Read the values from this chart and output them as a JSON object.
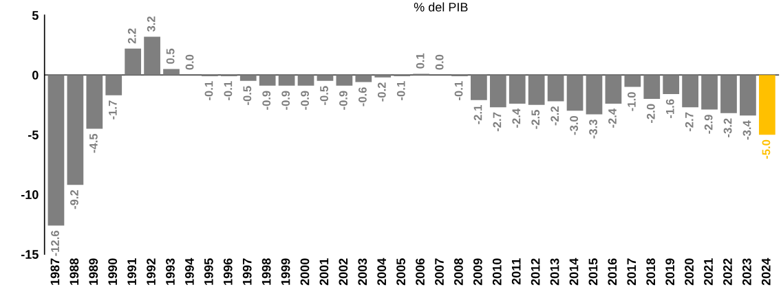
{
  "chart_data": {
    "type": "bar",
    "title": "% del PIB",
    "categories": [
      "1987",
      "1988",
      "1989",
      "1990",
      "1991",
      "1992",
      "1993",
      "1994",
      "1995",
      "1996",
      "1997",
      "1998",
      "1999",
      "2000",
      "2001",
      "2002",
      "2003",
      "2004",
      "2005",
      "2006",
      "2007",
      "2008",
      "2009",
      "2010",
      "2011",
      "2012",
      "2013",
      "2014",
      "2015",
      "2016",
      "2017",
      "2018",
      "2019",
      "2020",
      "2021",
      "2022",
      "2023",
      "2024"
    ],
    "values": [
      -12.6,
      -9.2,
      -4.5,
      -1.7,
      2.2,
      3.2,
      0.5,
      0.0,
      -0.1,
      -0.1,
      -0.5,
      -0.9,
      -0.9,
      -0.9,
      -0.5,
      -0.9,
      -0.6,
      -0.2,
      -0.1,
      0.1,
      0.0,
      -0.1,
      -2.1,
      -2.7,
      -2.4,
      -2.5,
      -2.2,
      -3.0,
      -3.3,
      -2.4,
      -1.0,
      -2.0,
      -1.6,
      -2.7,
      -2.9,
      -3.2,
      -3.4,
      -5.0
    ],
    "colors": [
      "#7f7f7f",
      "#7f7f7f",
      "#7f7f7f",
      "#7f7f7f",
      "#7f7f7f",
      "#7f7f7f",
      "#7f7f7f",
      "#7f7f7f",
      "#7f7f7f",
      "#7f7f7f",
      "#7f7f7f",
      "#7f7f7f",
      "#7f7f7f",
      "#7f7f7f",
      "#7f7f7f",
      "#7f7f7f",
      "#7f7f7f",
      "#7f7f7f",
      "#7f7f7f",
      "#7f7f7f",
      "#7f7f7f",
      "#7f7f7f",
      "#7f7f7f",
      "#7f7f7f",
      "#7f7f7f",
      "#7f7f7f",
      "#7f7f7f",
      "#7f7f7f",
      "#7f7f7f",
      "#7f7f7f",
      "#7f7f7f",
      "#7f7f7f",
      "#7f7f7f",
      "#7f7f7f",
      "#7f7f7f",
      "#7f7f7f",
      "#7f7f7f",
      "#ffc000"
    ],
    "value_labels": [
      "-12.6",
      "-9.2",
      "-4.5",
      "-1.7",
      "2.2",
      "3.2",
      "0.5",
      "0.0",
      "-0.1",
      "-0.1",
      "-0.5",
      "-0.9",
      "-0.9",
      "-0.9",
      "-0.5",
      "-0.9",
      "-0.6",
      "-0.2",
      "-0.1",
      "0.1",
      "0.0",
      "-0.1",
      "-2.1",
      "-2.7",
      "-2.4",
      "-2.5",
      "-2.2",
      "-3.0",
      "-3.3",
      "-2.4",
      "-1.0",
      "-2.0",
      "-1.6",
      "-2.7",
      "-2.9",
      "-3.2",
      "-3.4",
      "-5.0"
    ],
    "ylim": [
      -15,
      5
    ],
    "yticks": [
      -15,
      -10,
      -5,
      0,
      5
    ]
  }
}
